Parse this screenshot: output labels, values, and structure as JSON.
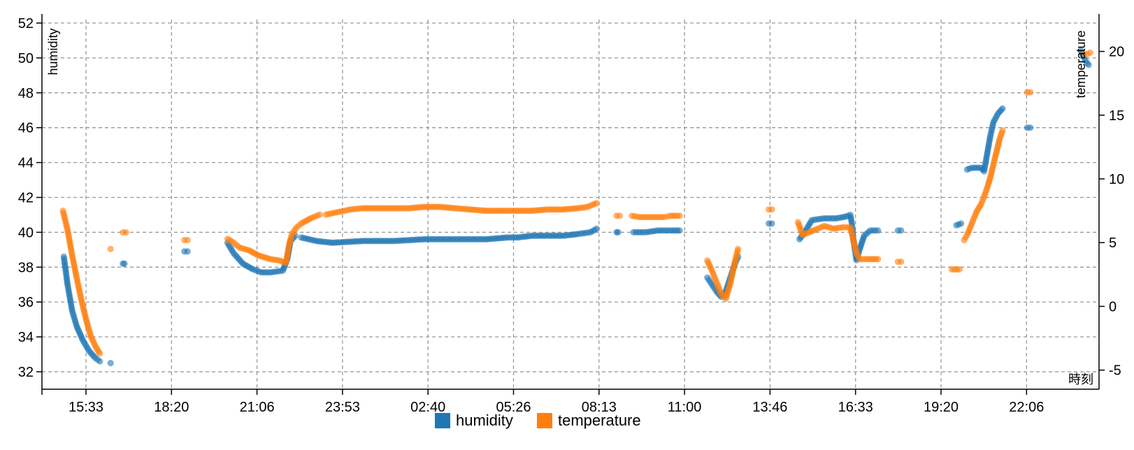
{
  "chart_data": {
    "type": "scatter",
    "title": "",
    "xlabel": "時刻",
    "ylabel": "humidity",
    "y2label": "temperature",
    "x_tick_labels": [
      "15:33",
      "18:20",
      "21:06",
      "23:53",
      "02:40",
      "05:26",
      "08:13",
      "11:00",
      "13:46",
      "16:33",
      "19:20",
      "22:06"
    ],
    "x_range_hours": [
      0,
      34.5
    ],
    "y_left": {
      "range": [
        31,
        52.2
      ],
      "ticks": [
        32,
        34,
        36,
        38,
        40,
        42,
        44,
        46,
        48,
        50,
        52
      ]
    },
    "y_right": {
      "range": [
        -6.5,
        22.5
      ],
      "ticks": [
        -5,
        0,
        5,
        10,
        15,
        20
      ]
    },
    "grid": true,
    "legend_position": "bottom-center",
    "series": [
      {
        "name": "humidity",
        "axis": "left",
        "color": "#1f77b4",
        "segments": [
          [
            [
              0.28,
              38.6
            ],
            [
              0.4,
              37.0
            ],
            [
              0.55,
              35.5
            ],
            [
              0.7,
              34.6
            ],
            [
              0.9,
              33.8
            ],
            [
              1.1,
              33.2
            ],
            [
              1.3,
              32.8
            ],
            [
              1.45,
              32.6
            ]
          ],
          [
            [
              1.8,
              32.5
            ]
          ],
          [
            [
              2.2,
              38.2
            ],
            [
              2.25,
              38.2
            ]
          ],
          [
            [
              4.2,
              38.9
            ],
            [
              4.3,
              38.9
            ]
          ],
          [
            [
              5.6,
              39.4
            ],
            [
              5.8,
              38.8
            ],
            [
              6.1,
              38.2
            ],
            [
              6.4,
              37.9
            ],
            [
              6.7,
              37.7
            ],
            [
              7.0,
              37.7
            ],
            [
              7.4,
              37.8
            ],
            [
              7.55,
              38.5
            ],
            [
              7.65,
              39.5
            ],
            [
              7.8,
              39.8
            ]
          ],
          [
            [
              8.0,
              39.7
            ],
            [
              8.5,
              39.5
            ],
            [
              9.0,
              39.4
            ],
            [
              10.0,
              39.5
            ],
            [
              11.0,
              39.5
            ],
            [
              12.0,
              39.6
            ],
            [
              13.0,
              39.6
            ],
            [
              14.0,
              39.6
            ],
            [
              14.7,
              39.7
            ],
            [
              15.0,
              39.7
            ],
            [
              15.5,
              39.8
            ],
            [
              16.0,
              39.8
            ],
            [
              16.5,
              39.8
            ],
            [
              17.0,
              39.9
            ],
            [
              17.4,
              40.0
            ],
            [
              17.6,
              40.2
            ]
          ],
          [
            [
              18.25,
              40.0
            ],
            [
              18.3,
              40.0
            ]
          ],
          [
            [
              18.8,
              40.0
            ],
            [
              19.2,
              40.0
            ],
            [
              19.6,
              40.1
            ],
            [
              20.0,
              40.1
            ],
            [
              20.3,
              40.1
            ]
          ],
          [
            [
              21.2,
              37.4
            ],
            [
              21.35,
              37.0
            ],
            [
              21.5,
              36.6
            ],
            [
              21.65,
              36.3
            ],
            [
              21.8,
              36.6
            ],
            [
              21.95,
              37.4
            ],
            [
              22.1,
              38.2
            ],
            [
              22.2,
              38.6
            ]
          ],
          [
            [
              23.2,
              40.5
            ],
            [
              23.3,
              40.5
            ]
          ],
          [
            [
              24.2,
              39.6
            ],
            [
              24.4,
              40.1
            ],
            [
              24.6,
              40.7
            ],
            [
              25.0,
              40.8
            ],
            [
              25.4,
              40.8
            ],
            [
              25.7,
              40.9
            ],
            [
              25.85,
              41.0
            ],
            [
              25.9,
              40.5
            ],
            [
              25.95,
              39.6
            ],
            [
              26.0,
              39.0
            ],
            [
              26.05,
              38.4
            ],
            [
              26.15,
              39.0
            ],
            [
              26.3,
              39.8
            ],
            [
              26.5,
              40.1
            ],
            [
              26.75,
              40.1
            ]
          ],
          [
            [
              27.4,
              40.1
            ],
            [
              27.5,
              40.1
            ]
          ],
          [
            [
              29.3,
              40.4
            ],
            [
              29.45,
              40.5
            ]
          ],
          [
            [
              29.65,
              43.6
            ],
            [
              29.8,
              43.7
            ],
            [
              30.1,
              43.7
            ],
            [
              30.2,
              43.5
            ],
            [
              30.3,
              44.5
            ],
            [
              30.4,
              45.5
            ],
            [
              30.5,
              46.3
            ],
            [
              30.65,
              46.8
            ],
            [
              30.8,
              47.1
            ]
          ],
          [
            [
              31.6,
              46.0
            ],
            [
              31.7,
              46.0
            ]
          ],
          [
            [
              33.35,
              50.4
            ],
            [
              33.45,
              50.0
            ],
            [
              33.55,
              49.7
            ],
            [
              33.6,
              49.6
            ]
          ]
        ]
      },
      {
        "name": "temperature",
        "axis": "right",
        "color": "#ff7f0e",
        "segments": [
          [
            [
              0.25,
              7.5
            ],
            [
              0.4,
              6.0
            ],
            [
              0.55,
              4.0
            ],
            [
              0.7,
              2.2
            ],
            [
              0.85,
              0.5
            ],
            [
              1.0,
              -1.0
            ],
            [
              1.15,
              -2.3
            ],
            [
              1.3,
              -3.1
            ],
            [
              1.45,
              -3.7
            ]
          ],
          [
            [
              1.8,
              4.5
            ]
          ],
          [
            [
              2.2,
              5.8
            ],
            [
              2.3,
              5.8
            ]
          ],
          [
            [
              4.2,
              5.2
            ],
            [
              4.3,
              5.2
            ]
          ],
          [
            [
              5.6,
              5.3
            ],
            [
              5.8,
              5.0
            ],
            [
              6.0,
              4.6
            ],
            [
              6.3,
              4.4
            ],
            [
              6.6,
              4.0
            ],
            [
              7.0,
              3.7
            ],
            [
              7.3,
              3.6
            ],
            [
              7.5,
              3.4
            ],
            [
              7.6,
              4.8
            ],
            [
              7.7,
              5.7
            ],
            [
              7.85,
              6.2
            ],
            [
              8.0,
              6.5
            ],
            [
              8.3,
              6.9
            ],
            [
              8.6,
              7.2
            ]
          ],
          [
            [
              8.8,
              7.2
            ],
            [
              9.2,
              7.4
            ],
            [
              9.6,
              7.6
            ],
            [
              10.0,
              7.7
            ],
            [
              10.5,
              7.7
            ],
            [
              11.0,
              7.7
            ],
            [
              11.5,
              7.7
            ],
            [
              12.0,
              7.8
            ],
            [
              12.5,
              7.8
            ],
            [
              13.0,
              7.7
            ],
            [
              13.5,
              7.6
            ],
            [
              14.0,
              7.5
            ],
            [
              14.5,
              7.5
            ],
            [
              15.0,
              7.5
            ],
            [
              15.5,
              7.5
            ],
            [
              16.0,
              7.6
            ],
            [
              16.5,
              7.6
            ],
            [
              17.0,
              7.7
            ],
            [
              17.3,
              7.8
            ],
            [
              17.6,
              8.1
            ]
          ],
          [
            [
              18.25,
              7.1
            ],
            [
              18.35,
              7.1
            ]
          ],
          [
            [
              18.75,
              7.1
            ],
            [
              19.0,
              7.0
            ],
            [
              19.4,
              7.0
            ],
            [
              19.8,
              7.0
            ],
            [
              20.0,
              7.1
            ],
            [
              20.3,
              7.1
            ]
          ],
          [
            [
              21.2,
              3.6
            ],
            [
              21.35,
              2.8
            ],
            [
              21.5,
              1.9
            ],
            [
              21.65,
              1.0
            ],
            [
              21.8,
              0.6
            ],
            [
              21.95,
              1.8
            ],
            [
              22.1,
              3.5
            ],
            [
              22.2,
              4.5
            ]
          ],
          [
            [
              23.2,
              7.6
            ],
            [
              23.3,
              7.6
            ]
          ],
          [
            [
              24.15,
              6.6
            ],
            [
              24.3,
              5.6
            ],
            [
              24.5,
              5.8
            ],
            [
              24.7,
              6.0
            ],
            [
              25.0,
              6.3
            ],
            [
              25.3,
              6.1
            ],
            [
              25.6,
              6.2
            ],
            [
              25.85,
              6.2
            ],
            [
              25.95,
              5.2
            ],
            [
              26.05,
              4.2
            ],
            [
              26.15,
              3.7
            ],
            [
              26.4,
              3.7
            ],
            [
              26.75,
              3.7
            ]
          ],
          [
            [
              27.4,
              3.5
            ],
            [
              27.5,
              3.5
            ]
          ],
          [
            [
              29.15,
              2.9
            ],
            [
              29.4,
              2.9
            ]
          ],
          [
            [
              29.55,
              5.2
            ],
            [
              29.65,
              5.6
            ],
            [
              29.8,
              6.5
            ],
            [
              29.95,
              7.4
            ],
            [
              30.1,
              8.0
            ],
            [
              30.2,
              8.6
            ],
            [
              30.3,
              9.3
            ],
            [
              30.4,
              10.1
            ],
            [
              30.5,
              11.1
            ],
            [
              30.6,
              12.1
            ],
            [
              30.7,
              13.1
            ],
            [
              30.8,
              13.8
            ]
          ],
          [
            [
              31.6,
              16.8
            ],
            [
              31.7,
              16.8
            ]
          ],
          [
            [
              33.45,
              19.8
            ],
            [
              33.55,
              19.8
            ],
            [
              33.65,
              19.9
            ]
          ]
        ]
      }
    ]
  }
}
